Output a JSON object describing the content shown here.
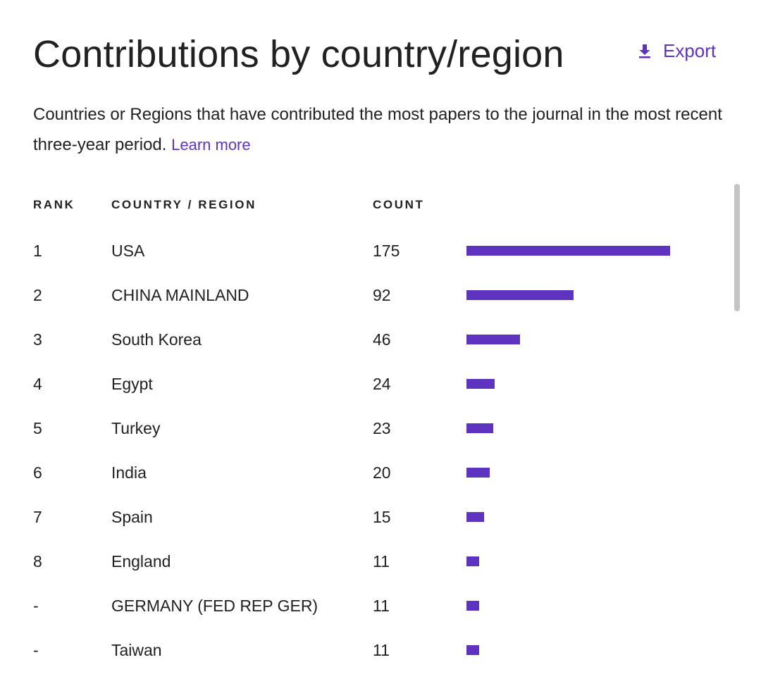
{
  "title": "Contributions by country/region",
  "export": {
    "label": "Export",
    "icon": "download-icon"
  },
  "description": {
    "text": "Countries or Regions that have contributed the most papers to the journal in the most recent three-year period.",
    "link": "Learn more"
  },
  "table": {
    "headers": {
      "rank": "RANK",
      "country": "COUNTRY / REGION",
      "count": "COUNT"
    },
    "rows": [
      {
        "rank": "1",
        "country": "USA",
        "count": "175"
      },
      {
        "rank": "2",
        "country": "CHINA MAINLAND",
        "count": "92"
      },
      {
        "rank": "3",
        "country": "South Korea",
        "count": "46"
      },
      {
        "rank": "4",
        "country": "Egypt",
        "count": "24"
      },
      {
        "rank": "5",
        "country": "Turkey",
        "count": "23"
      },
      {
        "rank": "6",
        "country": "India",
        "count": "20"
      },
      {
        "rank": "7",
        "country": "Spain",
        "count": "15"
      },
      {
        "rank": "8",
        "country": "England",
        "count": "11"
      },
      {
        "rank": "-",
        "country": "GERMANY (FED REP GER)",
        "count": "11"
      },
      {
        "rank": "-",
        "country": "Taiwan",
        "count": "11"
      }
    ]
  },
  "chart_data": {
    "type": "bar",
    "categories": [
      "USA",
      "CHINA MAINLAND",
      "South Korea",
      "Egypt",
      "Turkey",
      "India",
      "Spain",
      "England",
      "GERMANY (FED REP GER)",
      "Taiwan"
    ],
    "values": [
      175,
      92,
      46,
      24,
      23,
      20,
      15,
      11,
      11,
      11
    ],
    "title": "Contributions by country/region",
    "xlabel": "",
    "ylabel": "COUNT"
  },
  "colors": {
    "accent": "#5e33bf",
    "text": "#212121",
    "scrollbar": "#c4c4c4"
  }
}
